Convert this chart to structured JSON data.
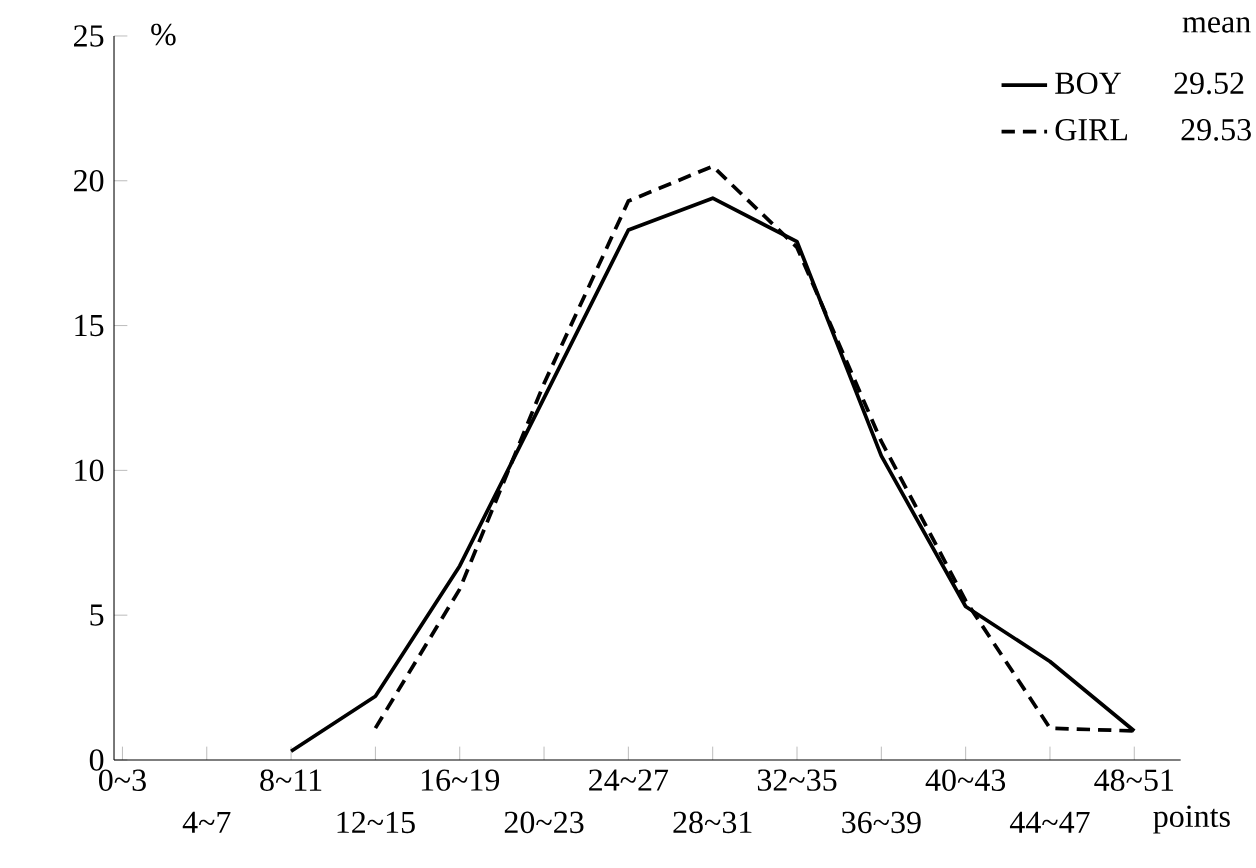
{
  "chart_data": {
    "type": "line",
    "xlabel": "points",
    "ylabel": "%",
    "categories": [
      "0~3",
      "4~7",
      "8~11",
      "12~15",
      "16~19",
      "20~23",
      "24~27",
      "28~31",
      "32~35",
      "36~39",
      "40~43",
      "44~47",
      "48~51"
    ],
    "series": [
      {
        "name": "BOY",
        "color": "#000000",
        "line_style": "solid",
        "values": [
          null,
          null,
          0.3,
          2.2,
          6.7,
          12.5,
          18.3,
          19.4,
          17.9,
          10.5,
          5.3,
          3.4,
          1.0
        ]
      },
      {
        "name": "GIRL",
        "color": "#000000",
        "line_style": "dashed",
        "values": [
          null,
          null,
          null,
          1.1,
          5.9,
          13.0,
          19.3,
          20.5,
          17.7,
          11.0,
          5.5,
          1.1,
          1.0
        ]
      }
    ],
    "annotations": [
      "mean",
      "29.52",
      "29.53"
    ],
    "ylim": [
      0,
      25
    ],
    "yticks": [
      0,
      5,
      10,
      15,
      20,
      25
    ],
    "grid": false,
    "legend": "top right",
    "marker": "none"
  }
}
